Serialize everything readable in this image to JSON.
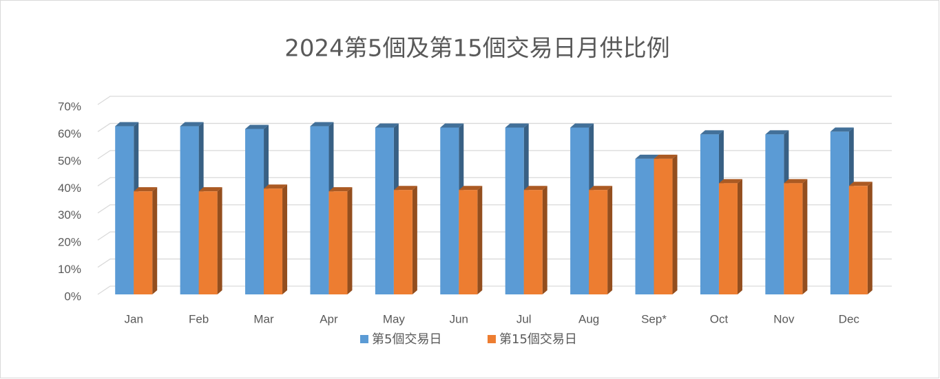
{
  "chart_data": {
    "type": "bar3d",
    "title": "2024第5個及第15個交易日月供比例",
    "categories": [
      "Jan",
      "Feb",
      "Mar",
      "Apr",
      "May",
      "Jun",
      "Jul",
      "Aug",
      "Sep*",
      "Oct",
      "Nov",
      "Dec"
    ],
    "series": [
      {
        "name": "第5個交易日",
        "color": "#5b9bd5",
        "values": [
          62,
          62,
          61,
          62,
          61.5,
          61.5,
          61.5,
          61.5,
          50,
          59,
          59,
          60
        ]
      },
      {
        "name": "第15個交易日",
        "color": "#ed7d31",
        "values": [
          38,
          38,
          39,
          38,
          38.5,
          38.5,
          38.5,
          38.5,
          50,
          41,
          41,
          40
        ]
      }
    ],
    "ylim": [
      0,
      70
    ],
    "yticks": [
      {
        "value": 0,
        "label": "0%"
      },
      {
        "value": 10,
        "label": "10%"
      },
      {
        "value": 20,
        "label": "20%"
      },
      {
        "value": 30,
        "label": "30%"
      },
      {
        "value": 40,
        "label": "40%"
      },
      {
        "value": 50,
        "label": "50%"
      },
      {
        "value": 60,
        "label": "60%"
      },
      {
        "value": 70,
        "label": "70%"
      }
    ],
    "grid": true,
    "legend": "bottom"
  }
}
